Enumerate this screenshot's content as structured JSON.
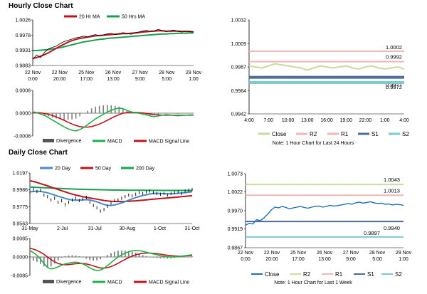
{
  "sections": {
    "hourly_title": "Hourly Close Chart",
    "daily_title": "Daily Close Chart"
  },
  "colors": {
    "ma_short": "#c0141c",
    "ma_long": "#18a050",
    "price_black": "#000000",
    "macd_green": "#1fb04a",
    "signal_red": "#c0141c",
    "divergence": "#7f7f7f",
    "close_hourly": "#c6dca2",
    "close_daily": "#1f6fb4",
    "r2": "#c9de9e",
    "r1": "#f0b7b7",
    "s1": "#4a6e99",
    "s2": "#7fc9d1"
  },
  "chart_data": [
    {
      "id": "hourly-price-ma",
      "type": "line",
      "title": "",
      "legend": [
        "20 Hr MA",
        "50 Hrs MA"
      ],
      "ylim": [
        0.9883,
        1.0026
      ],
      "yticks": [
        "1.0026",
        "0.9978",
        "0.9931",
        "0.9883"
      ],
      "yticks_values": [
        1.0026,
        0.9978,
        0.9931,
        0.9883
      ],
      "xticks": [
        "22 Nov\n0:00",
        "22 Nov\n20:00",
        "25 Nov\n17:00",
        "26 Nov\n13:00",
        "27 Nov\n9:00",
        "28 Nov\n5:00",
        "29 Nov\n1:00"
      ],
      "series": [
        {
          "name": "Close",
          "values": [
            0.9902,
            0.9916,
            0.9908,
            0.9924,
            0.9935,
            0.994,
            0.9944,
            0.9952,
            0.9958,
            0.9962,
            0.9966,
            0.997,
            0.9972,
            0.9975,
            0.9973,
            0.9977,
            0.998,
            0.9976,
            0.9979,
            0.9982,
            0.9984,
            0.998,
            0.9983,
            0.9986,
            0.9984,
            0.9981,
            0.9985,
            0.9988,
            0.9991,
            0.9993,
            0.999,
            0.9992,
            0.9996,
            0.9993,
            0.9989,
            0.9992,
            0.9994,
            0.999,
            0.9988,
            0.9991,
            0.9989,
            0.9988
          ]
        },
        {
          "name": "20 Hr MA",
          "values": [
            0.9905,
            0.9908,
            0.9912,
            0.9917,
            0.9923,
            0.993,
            0.9937,
            0.9944,
            0.995,
            0.9956,
            0.9961,
            0.9965,
            0.9968,
            0.997,
            0.9972,
            0.9974,
            0.9976,
            0.9977,
            0.9978,
            0.9979,
            0.998,
            0.9981,
            0.9982,
            0.9983,
            0.9983,
            0.9984,
            0.9985,
            0.9986,
            0.9988,
            0.9989,
            0.999,
            0.9991,
            0.9992,
            0.9992,
            0.9991,
            0.9991,
            0.9991,
            0.9991,
            0.999,
            0.999,
            0.999,
            0.9989
          ]
        },
        {
          "name": "50 Hrs MA",
          "values": [
            0.993,
            0.993,
            0.9931,
            0.9932,
            0.9933,
            0.9935,
            0.9937,
            0.9939,
            0.9942,
            0.9945,
            0.9948,
            0.9951,
            0.9954,
            0.9957,
            0.9959,
            0.9961,
            0.9963,
            0.9965,
            0.9966,
            0.9968,
            0.9969,
            0.997,
            0.9971,
            0.9972,
            0.9973,
            0.9974,
            0.9975,
            0.9976,
            0.9977,
            0.9978,
            0.9979,
            0.998,
            0.9981,
            0.9982,
            0.9982,
            0.9983,
            0.9983,
            0.9984,
            0.9984,
            0.9984,
            0.9985,
            0.9985
          ]
        }
      ]
    },
    {
      "id": "hourly-macd",
      "type": "line",
      "title": "",
      "legend": [
        "Divergence",
        "MACD",
        "MACD Signal Line"
      ],
      "ylim": [
        -0.0008,
        0.0008
      ],
      "yticks": [
        "0.0008",
        "0.0000",
        "-0.0008"
      ],
      "yticks_values": [
        0.0008,
        0.0,
        -0.0008
      ],
      "series": [
        {
          "name": "MACD",
          "values": [
            5e-05,
            2e-05,
            -3e-05,
            -8e-05,
            -0.00015,
            -0.00024,
            -0.00032,
            -0.0004,
            -0.00048,
            -0.00055,
            -0.0006,
            -0.00062,
            -0.00058,
            -0.0005,
            -0.0004,
            -0.0003,
            -0.0002,
            -0.00012,
            -4e-05,
            4e-05,
            0.0001,
            0.00015,
            0.00018,
            0.00016,
            0.0001,
            5e-05,
            2e-05,
            0.0,
            -3e-05,
            -6e-05,
            -0.0001,
            -0.00012,
            -0.0001,
            -7e-05,
            -5e-05,
            -6e-05,
            -8e-05,
            -9e-05,
            -8e-05,
            -7e-05,
            -6e-05,
            -6e-05
          ]
        },
        {
          "name": "MACD Signal Line",
          "values": [
            2e-05,
            2e-05,
            1e-05,
            -1e-05,
            -4e-05,
            -8e-05,
            -0.00013,
            -0.00019,
            -0.00025,
            -0.00032,
            -0.00038,
            -0.00043,
            -0.00047,
            -0.00049,
            -0.00049,
            -0.00047,
            -0.00043,
            -0.00038,
            -0.00032,
            -0.00025,
            -0.00018,
            -0.00011,
            -5e-05,
            0.0,
            2e-05,
            3e-05,
            3e-05,
            2e-05,
            1e-05,
            -1e-05,
            -3e-05,
            -5e-05,
            -6e-05,
            -7e-05,
            -7e-05,
            -7e-05,
            -7e-05,
            -7e-05,
            -7e-05,
            -7e-05,
            -7e-05,
            -7e-05
          ]
        },
        {
          "name": "Divergence",
          "values": [
            3e-05,
            0.0,
            -4e-05,
            -7e-05,
            -0.00011,
            -0.00016,
            -0.00019,
            -0.00021,
            -0.00023,
            -0.00023,
            -0.00022,
            -0.00019,
            -0.00011,
            -1e-05,
            9e-05,
            0.00017,
            0.00023,
            0.00026,
            0.00028,
            0.00029,
            0.00028,
            0.00026,
            0.00023,
            0.00016,
            8e-05,
            2e-05,
            -1e-05,
            -2e-05,
            -4e-05,
            -5e-05,
            -7e-05,
            -7e-05,
            -4e-05,
            0.0,
            2e-05,
            1e-05,
            -1e-05,
            -2e-05,
            -1e-05,
            0.0,
            1e-05,
            1e-05
          ]
        }
      ]
    },
    {
      "id": "hourly-pivot",
      "type": "line",
      "title": "",
      "note": "Note: 1 Hour Chart for Last 24 Hours",
      "ylim": [
        0.9942,
        1.0032
      ],
      "yticks": [
        "1.0032",
        "1.0009",
        "0.9987",
        "0.9964",
        "0.9942"
      ],
      "yticks_values": [
        1.0032,
        1.0009,
        0.9987,
        0.9964,
        0.9942
      ],
      "xticks": [
        "4:00",
        "7:00",
        "10:00",
        "13:00",
        "16:00",
        "19:00",
        "22:00",
        "1:00",
        "4:00"
      ],
      "levels": [
        {
          "name": "R2",
          "value": 1.0002,
          "label": "1.0002"
        },
        {
          "name": "R1",
          "value": 0.9992,
          "label": "0.9992"
        },
        {
          "name": "S1",
          "value": 0.9977,
          "label": "0.9977"
        },
        {
          "name": "S2",
          "value": 0.9972,
          "label": "0.9972"
        }
      ],
      "legend": [
        "Close",
        "R2",
        "R1",
        "S1",
        "S2"
      ],
      "series": [
        {
          "name": "Close",
          "values": [
            0.9988,
            0.9987,
            0.9986,
            0.9988,
            0.999,
            0.9989,
            0.9988,
            0.9987,
            0.9986,
            0.9984,
            0.9986,
            0.9988,
            0.9987,
            0.9986,
            0.9987,
            0.9988,
            0.9986,
            0.9985,
            0.9987,
            0.9988,
            0.9986,
            0.9985,
            0.9986,
            0.9987,
            0.9985
          ]
        }
      ]
    },
    {
      "id": "daily-price-ma",
      "type": "line",
      "title": "",
      "legend": [
        "20 Day",
        "50 Day",
        "200 Day"
      ],
      "ylim": [
        0.9563,
        1.0197
      ],
      "yticks": [
        "1.0197",
        "0.9986",
        "0.9775",
        "0.9563"
      ],
      "yticks_values": [
        1.0197,
        0.9986,
        0.9775,
        0.9563
      ],
      "xticks": [
        "31-May",
        "2-Jul",
        "31-Jul",
        "30-Aug",
        "1-Oct",
        "31-Oct"
      ],
      "series": [
        {
          "name": "Close",
          "values": [
            0.995,
            0.999,
            0.9965,
            0.998,
            0.992,
            0.99,
            0.986,
            0.988,
            0.983,
            0.985,
            0.98,
            0.983,
            0.986,
            0.988,
            0.985,
            0.987,
            0.989,
            0.983,
            0.979,
            0.976,
            0.972,
            0.974,
            0.978,
            0.982,
            0.985,
            0.986,
            0.988,
            0.99,
            0.992,
            0.991,
            0.993,
            0.995,
            0.994,
            0.996,
            0.997,
            0.995,
            0.994,
            0.993,
            0.994,
            0.992,
            0.994,
            0.995,
            0.996,
            0.994,
            0.997,
            0.998,
            0.999
          ]
        },
        {
          "name": "20 Day",
          "values": [
            0.996,
            0.9965,
            0.9968,
            0.9966,
            0.9958,
            0.9948,
            0.9935,
            0.992,
            0.9905,
            0.9892,
            0.9878,
            0.9866,
            0.9858,
            0.9856,
            0.9858,
            0.986,
            0.9862,
            0.9858,
            0.9848,
            0.9835,
            0.9818,
            0.9802,
            0.9792,
            0.979,
            0.9796,
            0.9808,
            0.9822,
            0.9838,
            0.9856,
            0.9872,
            0.9888,
            0.9902,
            0.9914,
            0.9924,
            0.9934,
            0.994,
            0.9942,
            0.994,
            0.9938,
            0.9936,
            0.9936,
            0.9938,
            0.9942,
            0.9946,
            0.995,
            0.9956,
            0.9962
          ]
        },
        {
          "name": "50 Day",
          "values": [
            1.01,
            1.009,
            1.0078,
            1.0064,
            1.005,
            1.0036,
            1.002,
            1.0005,
            0.999,
            0.9975,
            0.996,
            0.9945,
            0.9932,
            0.992,
            0.991,
            0.99,
            0.9892,
            0.9884,
            0.9876,
            0.9868,
            0.986,
            0.9852,
            0.9846,
            0.9842,
            0.984,
            0.9839,
            0.9839,
            0.984,
            0.9842,
            0.9845,
            0.9848,
            0.9852,
            0.9856,
            0.986,
            0.9864,
            0.9868,
            0.9872,
            0.9876,
            0.988,
            0.9884,
            0.9888,
            0.9892,
            0.9896,
            0.99,
            0.9904,
            0.9908,
            0.9912
          ]
        },
        {
          "name": "200 Day",
          "values": [
            1.002,
            1.0018,
            1.0016,
            1.0014,
            1.0012,
            1.001,
            1.0008,
            1.0006,
            1.0004,
            1.0002,
            1.0,
            0.9998,
            0.9996,
            0.9994,
            0.9993,
            0.9992,
            0.9991,
            0.999,
            0.9989,
            0.9988,
            0.9987,
            0.9986,
            0.9985,
            0.9984,
            0.9983,
            0.9983,
            0.9982,
            0.9982,
            0.9981,
            0.9981,
            0.998,
            0.998,
            0.998,
            0.9979,
            0.9979,
            0.9979,
            0.9979,
            0.9978,
            0.9978,
            0.9978,
            0.9978,
            0.9978,
            0.9978,
            0.9978,
            0.9978,
            0.9978,
            0.9978
          ]
        }
      ]
    },
    {
      "id": "daily-macd",
      "type": "line",
      "title": "",
      "legend": [
        "Divergence",
        "MACD",
        "MACD Signal Line"
      ],
      "ylim": [
        -0.0085,
        0.0085
      ],
      "yticks": [
        "0.0085",
        "0.0000",
        "-0.0085"
      ],
      "yticks_values": [
        0.0085,
        0.0,
        -0.0085
      ],
      "series": [
        {
          "name": "MACD",
          "values": [
            0.003,
            0.002,
            0.0008,
            -0.001,
            -0.003,
            -0.0048,
            -0.0055,
            -0.0052,
            -0.0045,
            -0.0038,
            -0.0032,
            -0.0028,
            -0.0025,
            -0.0024,
            -0.0026,
            -0.0032,
            -0.004,
            -0.005,
            -0.0058,
            -0.0062,
            -0.006,
            -0.0052,
            -0.004,
            -0.0026,
            -0.0012,
            0.0,
            0.001,
            0.0018,
            0.0024,
            0.0028,
            0.003,
            0.0029,
            0.0026,
            0.0022,
            0.0018,
            0.0014,
            0.001,
            0.0006,
            0.0003,
            0.0001,
            0.0,
            0.0001,
            0.0002,
            0.0004,
            0.0006,
            0.0008,
            0.001
          ]
        },
        {
          "name": "MACD Signal Line",
          "values": [
            0.004,
            0.0036,
            0.003,
            0.0022,
            0.0012,
            0.0,
            -0.0012,
            -0.0022,
            -0.003,
            -0.0034,
            -0.0036,
            -0.0035,
            -0.0033,
            -0.0031,
            -0.003,
            -0.003,
            -0.0032,
            -0.0036,
            -0.0041,
            -0.0046,
            -0.005,
            -0.0051,
            -0.0049,
            -0.0044,
            -0.0037,
            -0.0029,
            -0.002,
            -0.0011,
            -0.0003,
            0.0004,
            0.001,
            0.0014,
            0.0017,
            0.0018,
            0.0018,
            0.0017,
            0.0015,
            0.0013,
            0.001,
            0.0008,
            0.0006,
            0.0005,
            0.0004,
            0.0004,
            0.0005,
            0.0006,
            0.0007
          ]
        },
        {
          "name": "Divergence",
          "values": [
            -0.001,
            -0.0016,
            -0.0022,
            -0.0032,
            -0.0042,
            -0.0048,
            -0.0043,
            -0.003,
            -0.0015,
            -0.0004,
            0.0004,
            0.0007,
            0.0008,
            0.0007,
            0.0004,
            -0.0002,
            -0.0008,
            -0.0014,
            -0.0017,
            -0.0016,
            -0.001,
            -0.0001,
            0.0009,
            0.0018,
            0.0025,
            0.0029,
            0.003,
            0.0029,
            0.0027,
            0.0024,
            0.002,
            0.0015,
            0.0009,
            0.0004,
            0.0,
            -0.0003,
            -0.0005,
            -0.0007,
            -0.0007,
            -0.0007,
            -0.0006,
            -0.0004,
            -0.0002,
            0.0,
            0.0001,
            0.0002,
            0.0003
          ]
        }
      ]
    },
    {
      "id": "daily-pivot",
      "type": "line",
      "title": "",
      "note": "Note: 1 Hour Chart for Last 1 Week",
      "ylim": [
        0.9867,
        1.0073
      ],
      "yticks": [
        "1.0073",
        "1.0022",
        "0.9970",
        "0.9919",
        "0.9867"
      ],
      "yticks_values": [
        1.0073,
        1.0022,
        0.997,
        0.9919,
        0.9867
      ],
      "xticks": [
        "22 Nov\n0:00",
        "22 Nov\n20:00",
        "25 Nov\n17:00",
        "26 Nov\n13:00",
        "27 Nov\n9:00",
        "28 Nov\n5:00",
        "29 Nov\n1:00"
      ],
      "levels": [
        {
          "name": "R2",
          "value": 1.0043,
          "label": "1.0043"
        },
        {
          "name": "R1",
          "value": 1.0013,
          "label": "1.0013"
        },
        {
          "name": "S1",
          "value": 0.994,
          "label": "0.9940"
        },
        {
          "name": "S2",
          "value": 0.9897,
          "label": "0.9897"
        }
      ],
      "legend": [
        "Close",
        "R2",
        "R1",
        "S1",
        "S2"
      ],
      "series": [
        {
          "name": "Close",
          "values": [
            0.993,
            0.9935,
            0.9933,
            0.9945,
            0.9942,
            0.995,
            0.996,
            0.9972,
            0.998,
            0.9978,
            0.9982,
            0.9979,
            0.9975,
            0.9978,
            0.998,
            0.9982,
            0.9979,
            0.9977,
            0.998,
            0.9982,
            0.9983,
            0.998,
            0.9982,
            0.9985,
            0.9983,
            0.9984,
            0.9986,
            0.9988,
            0.999,
            0.9988,
            0.9992,
            0.9994,
            0.9991,
            0.9993,
            0.9995,
            0.9992,
            0.999,
            0.9991,
            0.9988,
            0.9989,
            0.9986,
            0.9988,
            0.9987,
            0.9985
          ]
        }
      ]
    }
  ]
}
